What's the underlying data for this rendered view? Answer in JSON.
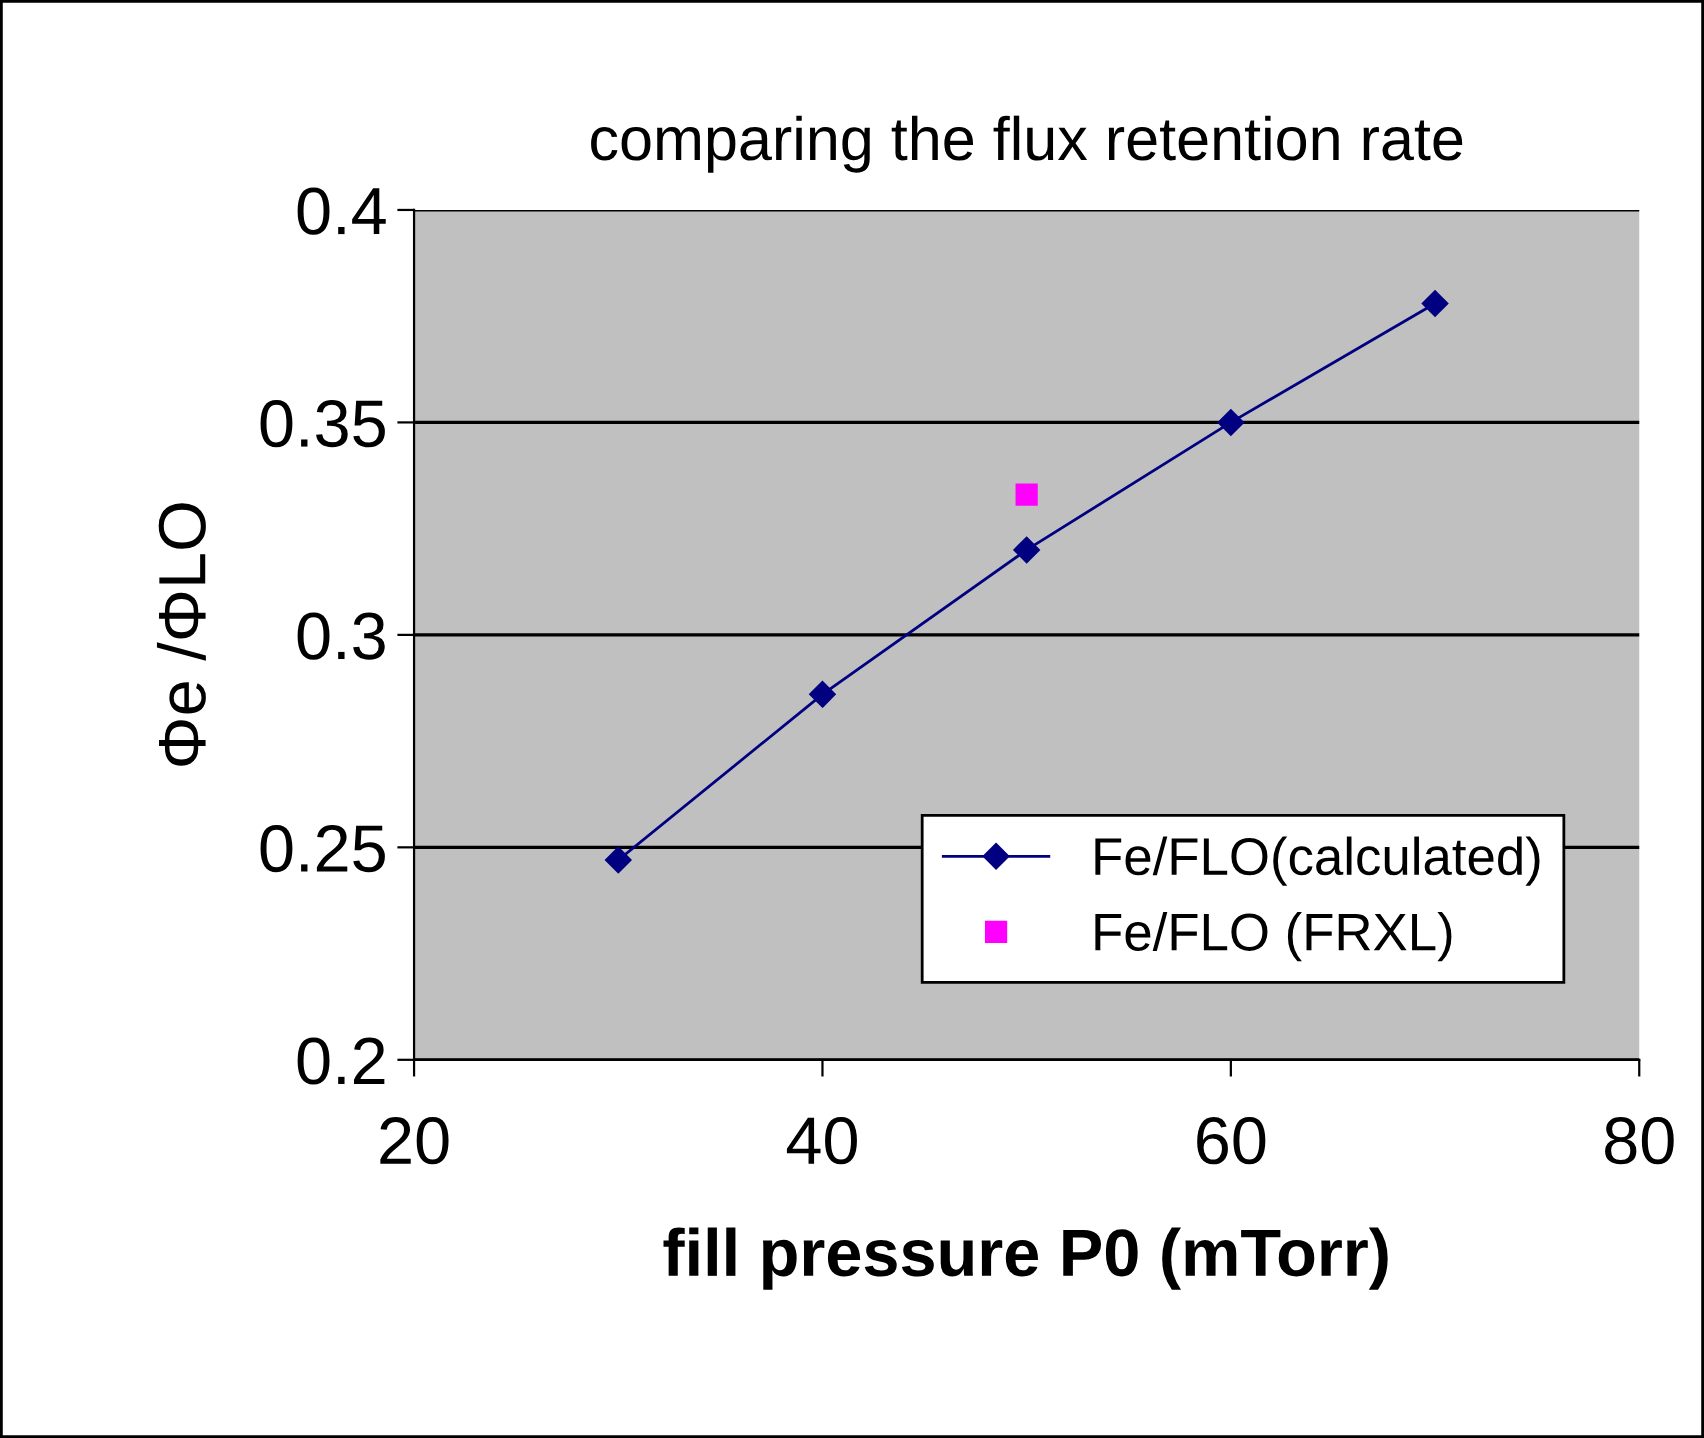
{
  "chart_data": {
    "type": "line",
    "title": "comparing the flux retention rate",
    "xlabel": "fill pressure P0 (mTorr)",
    "ylabel": "Φe /ΦLO",
    "xlim": [
      20,
      80
    ],
    "xticks": [
      20,
      40,
      60,
      80
    ],
    "ylim": [
      0.2,
      0.4
    ],
    "yticks": [
      0.2,
      0.25,
      0.3,
      0.35,
      0.4
    ],
    "grid": "y",
    "legend": "bottom right",
    "series": [
      {
        "name": "Fe/FLO(calculated)",
        "color": "#000080",
        "marker": "diamond",
        "x": [
          30,
          40,
          50,
          60,
          70
        ],
        "values": [
          0.247,
          0.286,
          0.32,
          0.35,
          0.378
        ]
      },
      {
        "name": "Fe/FLO (FRXL)",
        "type": "scatter",
        "color": "#ff00ff",
        "marker": "square",
        "x": [
          50
        ],
        "values": [
          0.333
        ]
      }
    ]
  }
}
